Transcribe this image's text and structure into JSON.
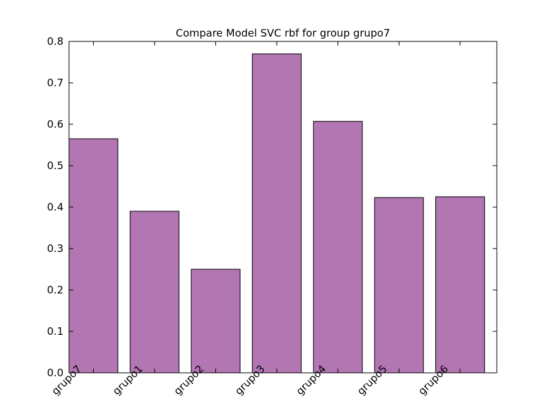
{
  "chart_data": {
    "type": "bar",
    "title": "Compare Model SVC rbf for group grupo7",
    "xlabel": "",
    "ylabel": "",
    "categories": [
      "grupo7",
      "grupo1",
      "grupo2",
      "grupo3",
      "grupo4",
      "grupo5",
      "grupo6"
    ],
    "values": [
      0.565,
      0.39,
      0.25,
      0.77,
      0.607,
      0.423,
      0.425
    ],
    "ylim": [
      0,
      0.8
    ],
    "yticks": [
      "0.0",
      "0.1",
      "0.2",
      "0.3",
      "0.4",
      "0.5",
      "0.6",
      "0.7",
      "0.8"
    ],
    "bar_color": "#b276b2",
    "edge_color": "#000000",
    "grid": false,
    "xtick_rotation": "45 degrees"
  }
}
